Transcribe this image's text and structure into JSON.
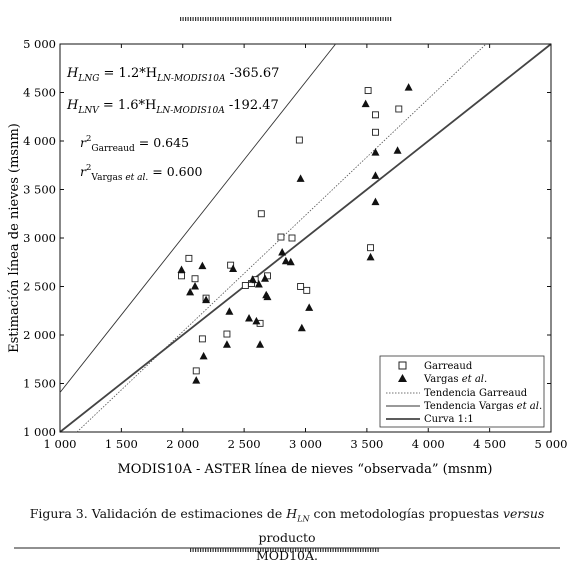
{
  "chart_data": {
    "type": "scatter",
    "xlabel": "MODIS10A - ASTER línea de nieves “observada” (msnm)",
    "ylabel": "Estimación línea de nieves (msnm)",
    "xlim": [
      1000,
      5000
    ],
    "ylim": [
      1000,
      5000
    ],
    "x_ticks": [
      1000,
      1500,
      2000,
      2500,
      3000,
      3500,
      4000,
      4500,
      5000
    ],
    "y_ticks": [
      1000,
      1500,
      2000,
      2500,
      3000,
      3500,
      4000,
      4500,
      5000
    ],
    "x_tick_labels": [
      "1 000",
      "1 500",
      "2 000",
      "2 500",
      "3 000",
      "3 500",
      "4 000",
      "4 500",
      "5 000"
    ],
    "y_tick_labels": [
      "1 000",
      "1 500",
      "2 000",
      "2 500",
      "3 000",
      "3 500",
      "4 000",
      "4 500",
      "5 000"
    ],
    "grid": false,
    "legend_position": "bottom-right",
    "series": [
      {
        "name": "Garreaud",
        "marker": "open-square",
        "points": [
          [
            1990,
            2610
          ],
          [
            2050,
            2790
          ],
          [
            2100,
            2580
          ],
          [
            2110,
            1630
          ],
          [
            2160,
            1960
          ],
          [
            2190,
            2380
          ],
          [
            2360,
            2010
          ],
          [
            2390,
            2720
          ],
          [
            2510,
            2510
          ],
          [
            2560,
            2530
          ],
          [
            2590,
            2570
          ],
          [
            2630,
            2120
          ],
          [
            2640,
            3250
          ],
          [
            2690,
            2610
          ],
          [
            2800,
            3010
          ],
          [
            2890,
            3000
          ],
          [
            2950,
            4010
          ],
          [
            2960,
            2500
          ],
          [
            3010,
            2460
          ],
          [
            3510,
            4520
          ],
          [
            3530,
            2900
          ],
          [
            3570,
            4270
          ],
          [
            3570,
            4090
          ],
          [
            3760,
            4330
          ]
        ]
      },
      {
        "name": "Vargas et al.",
        "marker": "filled-triangle",
        "points": [
          [
            1990,
            2670
          ],
          [
            2060,
            2440
          ],
          [
            2100,
            2500
          ],
          [
            2110,
            1530
          ],
          [
            2160,
            2710
          ],
          [
            2170,
            1780
          ],
          [
            2190,
            2360
          ],
          [
            2360,
            1900
          ],
          [
            2380,
            2240
          ],
          [
            2410,
            2680
          ],
          [
            2540,
            2170
          ],
          [
            2570,
            2570
          ],
          [
            2600,
            2140
          ],
          [
            2620,
            2520
          ],
          [
            2630,
            1900
          ],
          [
            2670,
            2580
          ],
          [
            2680,
            2410
          ],
          [
            2690,
            2390
          ],
          [
            2810,
            2850
          ],
          [
            2840,
            2760
          ],
          [
            2880,
            2750
          ],
          [
            2960,
            3610
          ],
          [
            2970,
            2070
          ],
          [
            3030,
            2280
          ],
          [
            3490,
            4380
          ],
          [
            3530,
            2800
          ],
          [
            3570,
            3640
          ],
          [
            3570,
            3880
          ],
          [
            3570,
            3370
          ],
          [
            3750,
            3900
          ],
          [
            3840,
            4550
          ]
        ]
      }
    ],
    "lines": [
      {
        "name": "Tendencia Garreaud",
        "style": "dotted",
        "slope": 1.2,
        "intercept": -365.67
      },
      {
        "name": "Tendencia Vargas et al.",
        "style": "thin",
        "slope": 1.6,
        "intercept": -192.47
      },
      {
        "name": "Curva 1:1",
        "style": "thick",
        "slope": 1.0,
        "intercept": 0
      }
    ],
    "annotations": {
      "eq1_lhs": "H",
      "eq1_lhs_sub": "LNG",
      "eq1_mid": " = 1.2*H",
      "eq1_sub": "LN-MODIS10A",
      "eq1_rhs": " -365.67",
      "eq2_lhs": "H",
      "eq2_lhs_sub": "LNV",
      "eq2_mid": " = 1.6*H",
      "eq2_sub": "LN-MODIS10A",
      "eq2_rhs": " -192.47",
      "r1_base": "r",
      "r1_sup": "2",
      "r1_sub": "Garreaud",
      "r1_val": " = 0.645",
      "r2_base": "r",
      "r2_sup": "2",
      "r2_sub_a": "Vargas ",
      "r2_sub_b": "et al.",
      "r2_val": " = 0.600"
    },
    "legend": {
      "garreaud": "Garreaud",
      "vargas_a": "Vargas ",
      "vargas_b": "et al.",
      "tend_garreaud": "Tendencia Garreaud",
      "tend_vargas_a": "Tendencia Vargas ",
      "tend_vargas_b": "et al.",
      "curva": "Curva 1:1"
    }
  },
  "caption": {
    "part1": "Figura 3. Validación de estimaciones de ",
    "h": "H",
    "h_sub": "LN",
    "part2": " con metodologías propuestas ",
    "versus": "versus",
    "part3": " producto",
    "line2": "MOD10A."
  }
}
